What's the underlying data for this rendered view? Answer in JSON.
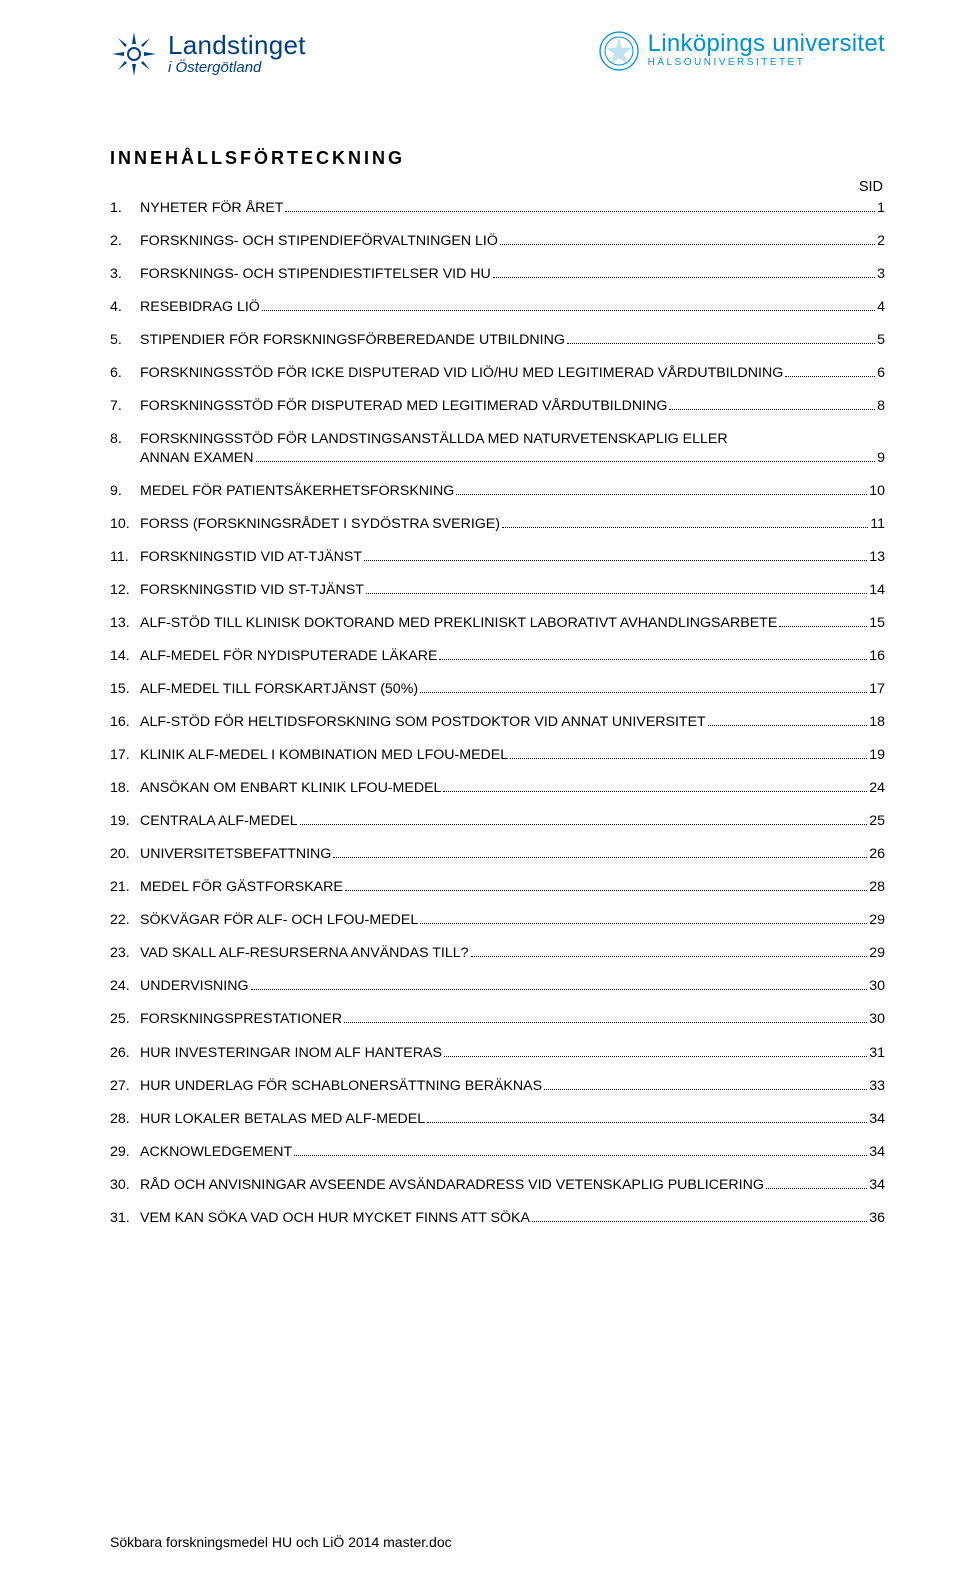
{
  "logo_left": {
    "main": "Landstinget",
    "sub": "i Östergötland",
    "color": "#003e82"
  },
  "logo_right": {
    "main": "Linköpings universitet",
    "sub": "HÄLSOUNIVERSITETET",
    "color": "#0091cf"
  },
  "title": "INNEHÅLLSFÖRTECKNING",
  "sid_label": "SID",
  "toc": [
    {
      "n": "1.",
      "t": "NYHETER FÖR ÅRET",
      "p": "1"
    },
    {
      "n": "2.",
      "t": "FORSKNINGS- OCH STIPENDIEFÖRVALTNINGEN LIÖ",
      "p": "2"
    },
    {
      "n": "3.",
      "t": "FORSKNINGS- OCH STIPENDIESTIFTELSER VID HU",
      "p": "3"
    },
    {
      "n": "4.",
      "t": "RESEBIDRAG LIÖ",
      "p": "4"
    },
    {
      "n": "5.",
      "t": "STIPENDIER FÖR FORSKNINGSFÖRBEREDANDE UTBILDNING",
      "p": "5"
    },
    {
      "n": "6.",
      "t": "FORSKNINGSSTÖD FÖR ICKE DISPUTERAD VID LIÖ/HU MED LEGITIMERAD VÅRDUTBILDNING",
      "p": "6"
    },
    {
      "n": "7.",
      "t": "FORSKNINGSSTÖD FÖR DISPUTERAD MED LEGITIMERAD VÅRDUTBILDNING",
      "p": "8"
    },
    {
      "n": "8.",
      "t": "FORSKNINGSSTÖD FÖR LANDSTINGSANSTÄLLDA MED NATURVETENSKAPLIG ELLER",
      "t2": "ANNAN EXAMEN",
      "p": "9"
    },
    {
      "n": "9.",
      "t": "MEDEL FÖR PATIENTSÄKERHETSFORSKNING",
      "p": "10"
    },
    {
      "n": "10.",
      "t": "FORSS (FORSKNINGSRÅDET I SYDÖSTRA SVERIGE)",
      "p": "11"
    },
    {
      "n": "11.",
      "t": "FORSKNINGSTID VID AT-TJÄNST",
      "p": "13"
    },
    {
      "n": "12.",
      "t": "FORSKNINGSTID VID ST-TJÄNST",
      "p": "14"
    },
    {
      "n": "13.",
      "t": "ALF-STÖD TILL KLINISK DOKTORAND MED PREKLINISKT LABORATIVT AVHANDLINGSARBETE",
      "p": "15"
    },
    {
      "n": "14.",
      "t": "ALF-MEDEL FÖR NYDISPUTERADE LÄKARE",
      "p": "16"
    },
    {
      "n": "15.",
      "t": "ALF-MEDEL TILL FORSKARTJÄNST (50%)",
      "p": "17"
    },
    {
      "n": "16.",
      "t": "ALF-STÖD FÖR HELTIDSFORSKNING SOM POSTDOKTOR VID ANNAT UNIVERSITET",
      "p": "18"
    },
    {
      "n": "17.",
      "t": "KLINIK ALF-MEDEL I KOMBINATION MED LFOU-MEDEL",
      "p": "19"
    },
    {
      "n": "18.",
      "t": "ANSÖKAN OM ENBART KLINIK LFOU-MEDEL",
      "p": "24"
    },
    {
      "n": "19.",
      "t": "CENTRALA ALF-MEDEL",
      "p": "25"
    },
    {
      "n": "20.",
      "t": "UNIVERSITETSBEFATTNING",
      "p": "26"
    },
    {
      "n": "21.",
      "t": "MEDEL FÖR GÄSTFORSKARE",
      "p": "28"
    },
    {
      "n": "22.",
      "t": "SÖKVÄGAR FÖR ALF- OCH LFOU-MEDEL",
      "p": "29"
    },
    {
      "n": "23.",
      "t": "VAD SKALL ALF-RESURSERNA ANVÄNDAS TILL?",
      "p": "29"
    },
    {
      "n": "24.",
      "t": "UNDERVISNING",
      "p": "30"
    },
    {
      "n": "25.",
      "t": "FORSKNINGSPRESTATIONER",
      "p": "30"
    },
    {
      "n": "26.",
      "t": "HUR INVESTERINGAR INOM ALF HANTERAS",
      "p": "31"
    },
    {
      "n": "27.",
      "t": "HUR UNDERLAG FÖR SCHABLONERSÄTTNING BERÄKNAS",
      "p": "33"
    },
    {
      "n": "28.",
      "t": "HUR LOKALER BETALAS MED ALF-MEDEL",
      "p": "34"
    },
    {
      "n": "29.",
      "t": "ACKNOWLEDGEMENT",
      "p": "34"
    },
    {
      "n": "30.",
      "t": "RÅD OCH ANVISNINGAR AVSEENDE AVSÄNDARADRESS VID VETENSKAPLIG PUBLICERING",
      "p": "34"
    },
    {
      "n": "31.",
      "t": "VEM KAN SÖKA VAD OCH HUR MYCKET FINNS ATT SÖKA",
      "p": "36"
    }
  ],
  "footer": "Sökbara forskningsmedel HU och LiÖ 2014 master.doc"
}
